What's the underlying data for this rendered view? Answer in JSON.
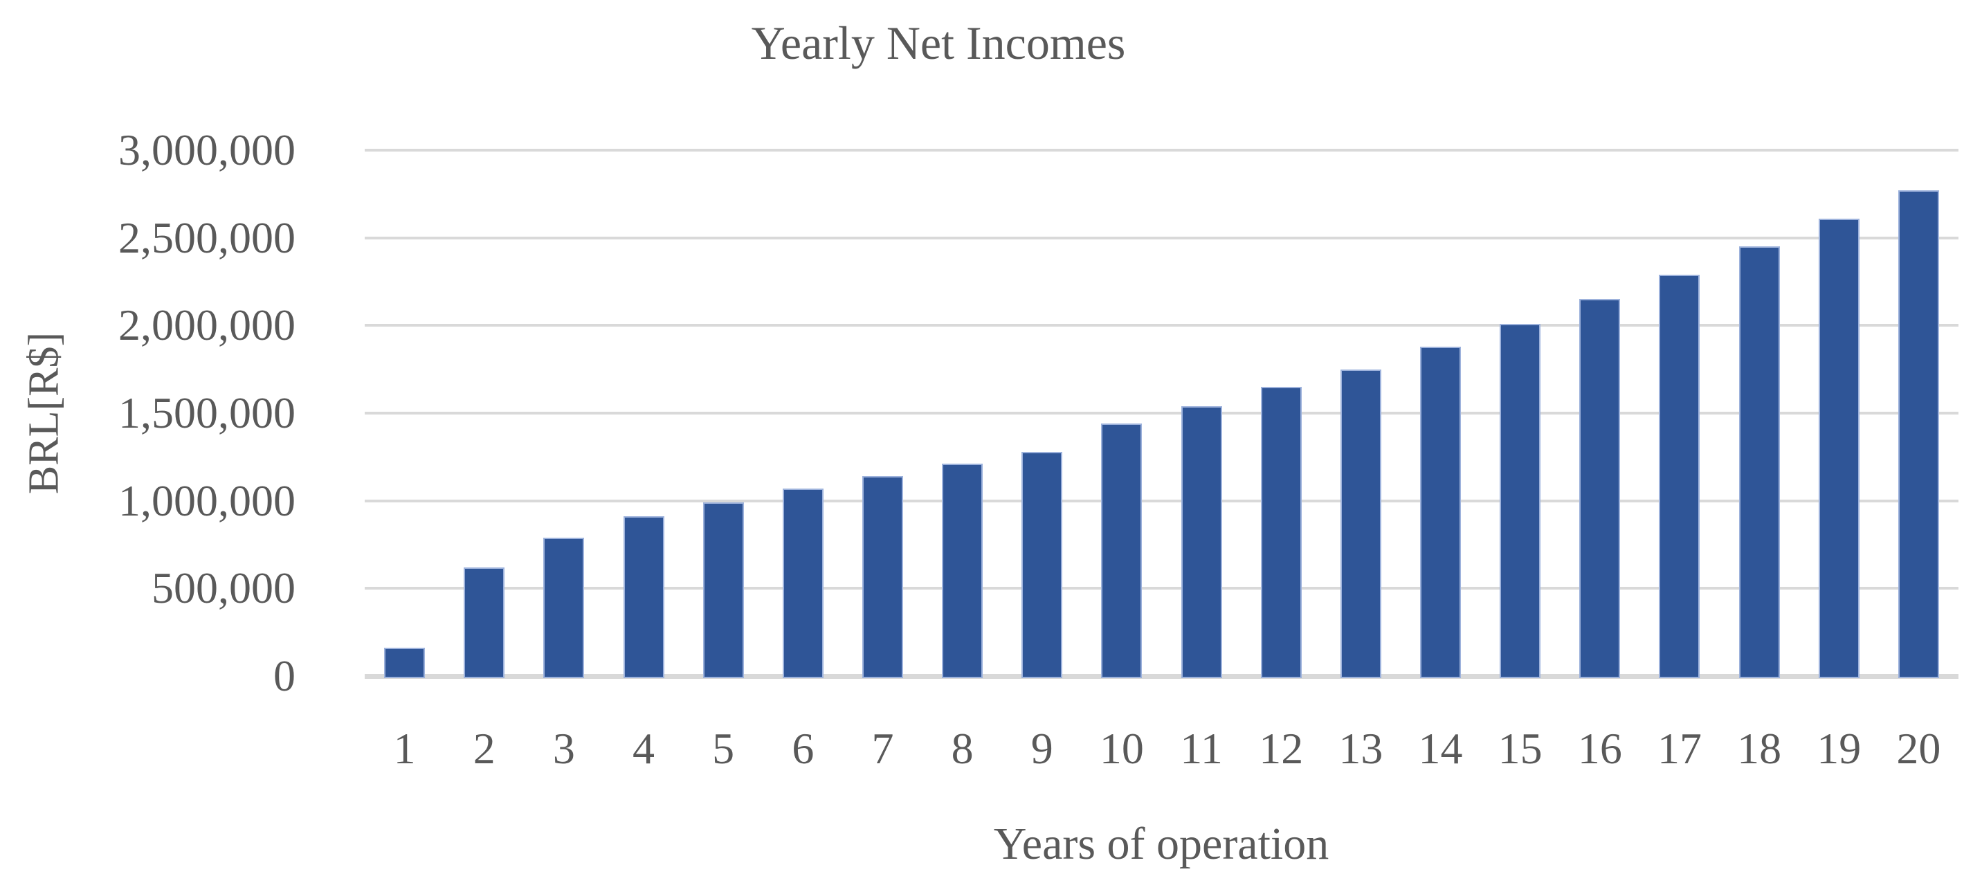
{
  "chart_data": {
    "type": "bar",
    "title": "Yearly Net Incomes",
    "xlabel": "Years of operation",
    "ylabel": "BRL[R$]",
    "categories": [
      "1",
      "2",
      "3",
      "4",
      "5",
      "6",
      "7",
      "8",
      "9",
      "10",
      "11",
      "12",
      "13",
      "14",
      "15",
      "16",
      "17",
      "18",
      "19",
      "20"
    ],
    "series": [
      {
        "name": "Yearly Net Incomes",
        "values": [
          160000,
          620000,
          790000,
          910000,
          990000,
          1070000,
          1140000,
          1210000,
          1280000,
          1440000,
          1540000,
          1650000,
          1750000,
          1880000,
          2010000,
          2150000,
          2290000,
          2450000,
          2610000,
          2770000
        ]
      }
    ],
    "ylim": [
      0,
      3000000
    ],
    "ytick_interval": 500000,
    "ytick_labels": [
      "0",
      "500,000",
      "1,000,000",
      "1,500,000",
      "2,000,000",
      "2,500,000",
      "3,000,000"
    ],
    "grid": true,
    "legend": "none",
    "colors": {
      "bar_fill": "#2F5597",
      "bar_border": "#9DB2DC",
      "gridline": "#D9D9D9",
      "text": "#595959",
      "background": "#FFFFFF"
    }
  }
}
